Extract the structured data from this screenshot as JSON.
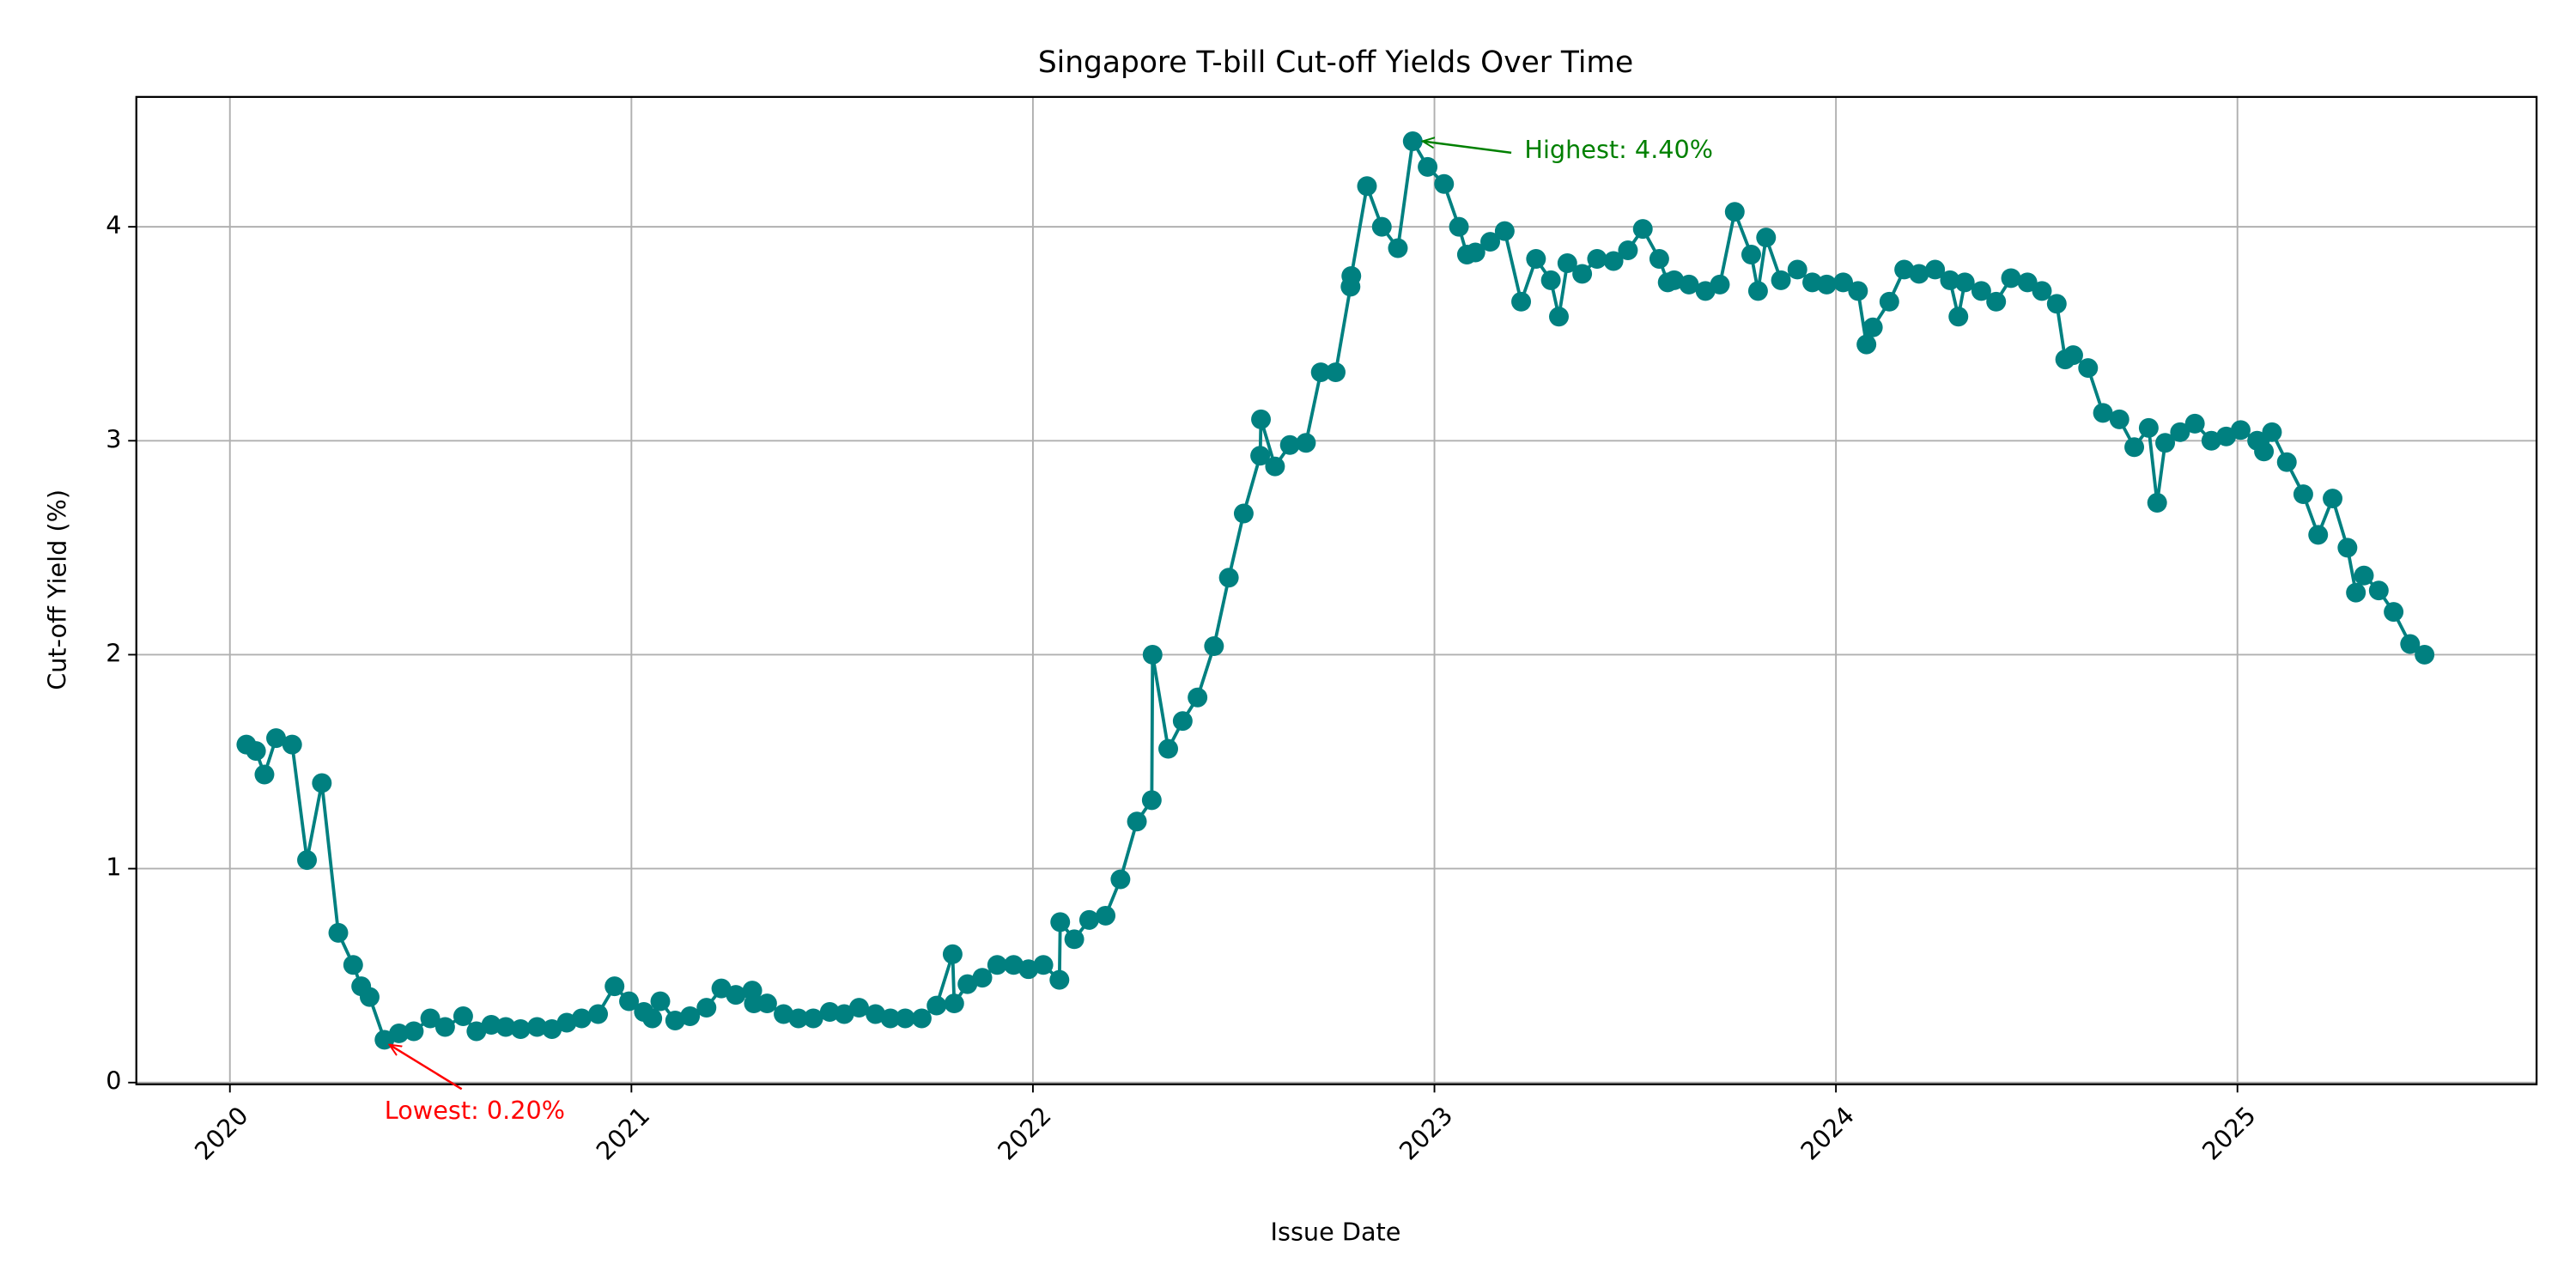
{
  "chart_data": {
    "type": "line",
    "title": "Singapore T-bill Cut-off Yields Over Time",
    "x_label": "Issue Date",
    "y_label": "Cut-off Yield (%)",
    "x": [
      2020.041,
      2020.065,
      2020.086,
      2020.115,
      2020.155,
      2020.192,
      2020.229,
      2020.27,
      2020.307,
      2020.327,
      2020.348,
      2020.385,
      2020.421,
      2020.458,
      2020.499,
      2020.536,
      2020.581,
      2020.614,
      2020.651,
      2020.687,
      2020.724,
      2020.765,
      2020.802,
      2020.839,
      2020.876,
      2020.917,
      2020.958,
      2020.994,
      2021.031,
      2021.052,
      2021.072,
      2021.109,
      2021.146,
      2021.187,
      2021.224,
      2021.26,
      2021.301,
      2021.305,
      2021.338,
      2021.379,
      2021.416,
      2021.453,
      2021.494,
      2021.53,
      2021.567,
      2021.608,
      2021.645,
      2021.682,
      2021.723,
      2021.76,
      2021.8,
      2021.804,
      2021.837,
      2021.874,
      2021.911,
      2021.952,
      2021.989,
      2022.026,
      2022.066,
      2022.068,
      2022.103,
      2022.14,
      2022.181,
      2022.218,
      2022.259,
      2022.296,
      2022.298,
      2022.337,
      2022.373,
      2022.41,
      2022.451,
      2022.488,
      2022.525,
      2022.566,
      2022.568,
      2022.603,
      2022.64,
      2022.68,
      2022.717,
      2022.754,
      2022.791,
      2022.793,
      2022.832,
      2022.869,
      2022.909,
      2022.946,
      2022.983,
      2023.024,
      2023.061,
      2023.081,
      2023.102,
      2023.139,
      2023.175,
      2023.216,
      2023.253,
      2023.29,
      2023.31,
      2023.331,
      2023.368,
      2023.405,
      2023.446,
      2023.482,
      2023.519,
      2023.56,
      2023.581,
      2023.597,
      2023.634,
      2023.675,
      2023.711,
      2023.748,
      2023.789,
      2023.806,
      2023.826,
      2023.863,
      2023.904,
      2023.941,
      2023.977,
      2024.018,
      2024.055,
      2024.076,
      2024.092,
      2024.133,
      2024.17,
      2024.207,
      2024.247,
      2024.284,
      2024.305,
      2024.321,
      2024.362,
      2024.399,
      2024.436,
      2024.477,
      2024.513,
      2024.55,
      2024.571,
      2024.591,
      2024.628,
      2024.665,
      2024.706,
      2024.743,
      2024.779,
      2024.8,
      2024.82,
      2024.857,
      2024.894,
      2024.935,
      2024.972,
      2025.008,
      2025.049,
      2025.066,
      2025.086,
      2025.123,
      2025.164,
      2025.201,
      2025.237,
      2025.274,
      2025.295,
      2025.315,
      2025.352,
      2025.389,
      2025.43,
      2025.466
    ],
    "series": [
      {
        "color": "#008080",
        "values": [
          1.58,
          1.55,
          1.44,
          1.61,
          1.58,
          1.04,
          1.4,
          0.7,
          0.55,
          0.45,
          0.4,
          0.2,
          0.23,
          0.24,
          0.3,
          0.26,
          0.31,
          0.24,
          0.27,
          0.26,
          0.25,
          0.26,
          0.25,
          0.28,
          0.3,
          0.32,
          0.45,
          0.38,
          0.33,
          0.3,
          0.38,
          0.29,
          0.31,
          0.35,
          0.44,
          0.41,
          0.43,
          0.37,
          0.37,
          0.32,
          0.3,
          0.3,
          0.33,
          0.32,
          0.35,
          0.32,
          0.3,
          0.3,
          0.3,
          0.36,
          0.6,
          0.37,
          0.46,
          0.49,
          0.55,
          0.55,
          0.53,
          0.55,
          0.48,
          0.75,
          0.67,
          0.76,
          0.78,
          0.95,
          1.22,
          1.32,
          2.0,
          1.56,
          1.69,
          1.8,
          2.04,
          2.36,
          2.66,
          2.93,
          3.1,
          2.88,
          2.98,
          2.99,
          3.32,
          3.32,
          3.72,
          3.77,
          4.19,
          4.0,
          3.9,
          4.4,
          4.28,
          4.2,
          4.0,
          3.87,
          3.88,
          3.93,
          3.98,
          3.65,
          3.85,
          3.75,
          3.58,
          3.83,
          3.78,
          3.85,
          3.84,
          3.89,
          3.99,
          3.85,
          3.74,
          3.75,
          3.73,
          3.7,
          3.73,
          4.07,
          3.87,
          3.7,
          3.95,
          3.75,
          3.8,
          3.74,
          3.73,
          3.74,
          3.7,
          3.45,
          3.53,
          3.65,
          3.8,
          3.78,
          3.8,
          3.75,
          3.58,
          3.74,
          3.7,
          3.65,
          3.76,
          3.74,
          3.7,
          3.64,
          3.38,
          3.4,
          3.34,
          3.13,
          3.1,
          2.97,
          3.06,
          2.71,
          2.99,
          3.04,
          3.08,
          3.0,
          3.02,
          3.05,
          3.0,
          2.95,
          3.04,
          2.9,
          2.75,
          2.56,
          2.73,
          2.5,
          2.29,
          2.37,
          2.3,
          2.2,
          2.05,
          2.0
        ]
      }
    ],
    "xlim": [
      2019.767,
      2025.745
    ],
    "xticks": [
      2020,
      2021,
      2022,
      2023,
      2024,
      2025
    ],
    "ylim": [
      -0.008,
      4.607
    ],
    "yticks": [
      0,
      1,
      2,
      3,
      4
    ],
    "grid": true,
    "annotations": [
      {
        "text": "Highest: 4.40%",
        "color": "green",
        "xy": [
          2022.946,
          4.4
        ]
      },
      {
        "text": "Lowest: 0.20%",
        "color": "red",
        "xy": [
          2020.385,
          0.2
        ]
      }
    ]
  }
}
